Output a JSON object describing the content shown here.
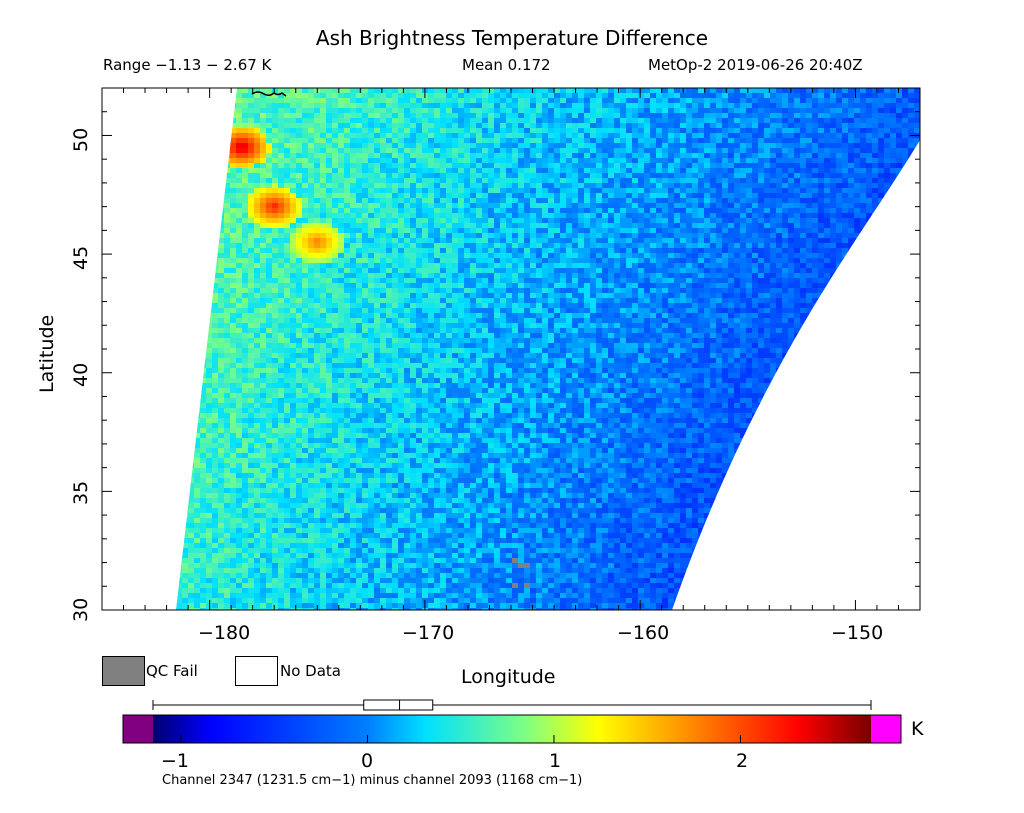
{
  "title": "Ash Brightness Temperature Difference",
  "header": {
    "range": "Range −1.13 − 2.67 K",
    "mean": "Mean 0.172",
    "satellite": "MetOp-2 2019-06-26 20:40Z"
  },
  "axes": {
    "xlabel": "Longitude",
    "ylabel": "Latitude",
    "x_ticks": [
      "−180",
      "−170",
      "−160",
      "−150"
    ],
    "y_ticks": [
      "30",
      "35",
      "40",
      "45",
      "50"
    ],
    "x_range": [
      -185,
      -147
    ],
    "y_range": [
      30,
      52
    ]
  },
  "legend": {
    "qc_fail": "QC Fail",
    "no_data": "No Data",
    "qc_color": "#808080",
    "nodata_color": "#ffffff"
  },
  "colorbar": {
    "unit": "K",
    "ticks": [
      "−1",
      "0",
      "1",
      "2"
    ],
    "tick_values": [
      -1,
      0,
      1,
      2
    ],
    "min": -1.15,
    "max": 2.7,
    "under_color": "#800080",
    "over_color": "#ff00ff",
    "mean": 0.172,
    "box_low": -0.02,
    "box_high": 0.35,
    "caption": "Channel 2347 (1231.5 cm−1) minus channel 2093 (1168 cm−1)"
  },
  "chart_data": {
    "type": "heatmap",
    "title": "Ash Brightness Temperature Difference",
    "xlabel": "Longitude",
    "ylabel": "Latitude",
    "xlim": [
      -185,
      -147
    ],
    "ylim": [
      30,
      52
    ],
    "value_range": [
      -1.13,
      2.67
    ],
    "mean": 0.172,
    "unit": "K",
    "features": [
      {
        "name": "high BTD streak",
        "lon": -178.5,
        "lat": 49.5,
        "value": 2.5
      },
      {
        "name": "high BTD streak",
        "lon": -177,
        "lat": 47,
        "value": 2.2
      },
      {
        "name": "high BTD streak",
        "lon": -175,
        "lat": 45.5,
        "value": 1.8
      },
      {
        "name": "low BTD region",
        "lon": -161,
        "lat": 32,
        "value": -0.8
      },
      {
        "name": "QC fail pixels",
        "lon": -165.5,
        "lat": 31.5,
        "value": null
      }
    ]
  }
}
